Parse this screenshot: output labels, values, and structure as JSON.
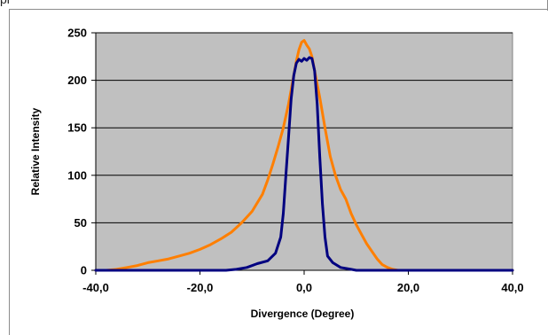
{
  "header": {
    "fragment": "pl"
  },
  "chart_data": {
    "type": "line",
    "title": "",
    "xlabel": "Divergence (Degree)",
    "ylabel": "Relative Intensity",
    "xlim": [
      -40,
      40
    ],
    "ylim": [
      0,
      250
    ],
    "x_ticks": [
      -40,
      -20,
      0,
      20,
      40
    ],
    "x_tick_labels": [
      "-40,0",
      "-20,0",
      "0,0",
      "20,0",
      "40,0"
    ],
    "y_ticks": [
      0,
      50,
      100,
      150,
      200,
      250
    ],
    "y_tick_labels": [
      "0",
      "50",
      "100",
      "150",
      "200",
      "250"
    ],
    "grid": true,
    "plot_background": "#c0c0c0",
    "gridline_color": "#000000",
    "series": [
      {
        "color": "#ff7f00",
        "x": [
          -40,
          -38,
          -36,
          -34,
          -32,
          -30,
          -28,
          -26,
          -24,
          -22,
          -20,
          -18,
          -16,
          -14,
          -12,
          -10,
          -8,
          -7,
          -6,
          -5,
          -4,
          -3,
          -2,
          -1.5,
          -1,
          -0.5,
          0,
          0.5,
          1,
          1.5,
          2,
          3,
          4,
          5,
          6,
          7,
          8,
          9,
          10,
          11,
          12,
          13,
          14,
          15,
          16,
          17,
          18,
          20,
          25,
          40
        ],
        "y": [
          0,
          0,
          1,
          3,
          5,
          8,
          10,
          12,
          15,
          18,
          22,
          27,
          33,
          40,
          50,
          62,
          80,
          95,
          112,
          130,
          150,
          175,
          205,
          220,
          232,
          240,
          242,
          237,
          233,
          225,
          210,
          182,
          150,
          120,
          100,
          85,
          75,
          60,
          48,
          38,
          28,
          20,
          12,
          6,
          3,
          1,
          0,
          0,
          0,
          0
        ]
      },
      {
        "color": "#000080",
        "x": [
          -40,
          -30,
          -20,
          -15,
          -13,
          -11,
          -9,
          -7,
          -5.5,
          -4.5,
          -4,
          -3.5,
          -3,
          -2.5,
          -2,
          -1.5,
          -1,
          -0.5,
          0,
          0.5,
          1,
          1.5,
          2,
          2.5,
          3,
          3.5,
          4,
          4.5,
          5.5,
          7,
          9,
          10,
          15,
          20,
          40
        ],
        "y": [
          0,
          0,
          0,
          0,
          1,
          3,
          7,
          10,
          18,
          35,
          60,
          100,
          140,
          180,
          205,
          218,
          222,
          220,
          223,
          221,
          224,
          223,
          210,
          175,
          120,
          70,
          35,
          15,
          8,
          3,
          1,
          0,
          0,
          0,
          0
        ]
      }
    ]
  }
}
